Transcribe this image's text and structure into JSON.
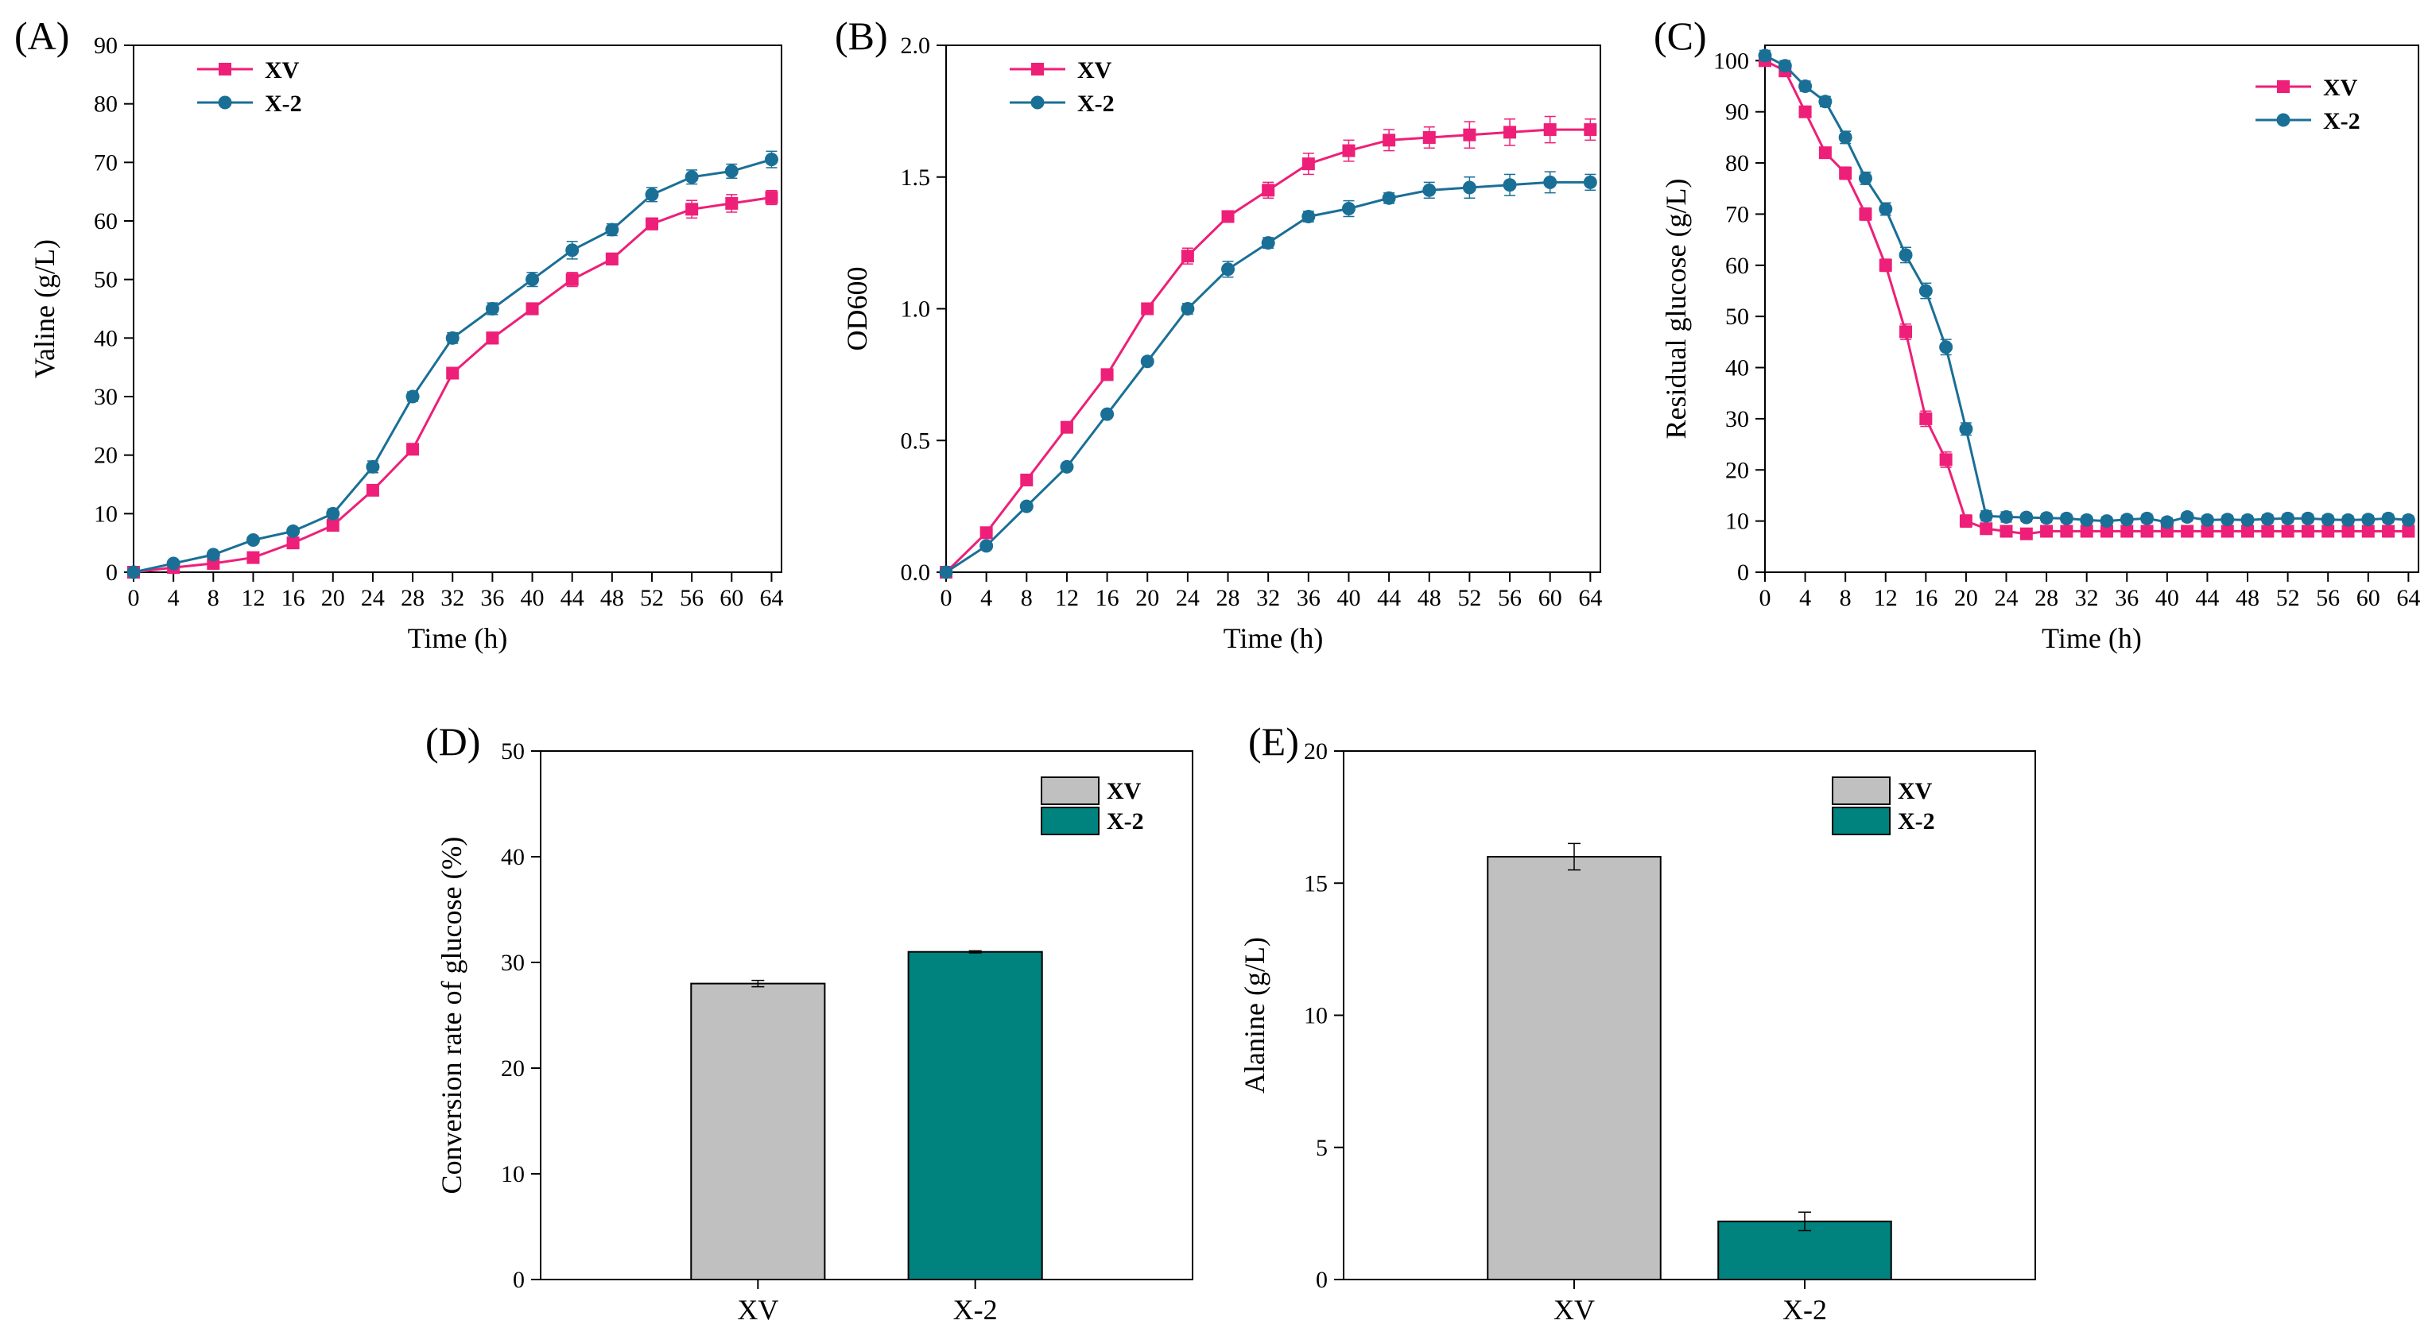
{
  "colors": {
    "xv": "#ee1f78",
    "x2": "#1a6f96",
    "bar_xv": "#c0c0c0",
    "bar_x2": "#00827f",
    "axis": "#000000"
  },
  "chart_data": [
    {
      "id": "A",
      "panel_label": "(A)",
      "type": "line",
      "xlabel": "Time (h)",
      "ylabel": "Valine (g/L)",
      "xlim": [
        0,
        65
      ],
      "ylim": [
        0,
        90
      ],
      "xticks": [
        0,
        4,
        8,
        12,
        16,
        20,
        24,
        28,
        32,
        36,
        40,
        44,
        48,
        52,
        56,
        60,
        64
      ],
      "yticks": [
        0,
        10,
        20,
        30,
        40,
        50,
        60,
        70,
        80,
        90
      ],
      "legend": "top-left",
      "series": [
        {
          "name": "XV",
          "color": "#ee1f78",
          "marker": "square",
          "x": [
            0,
            4,
            8,
            12,
            16,
            20,
            24,
            28,
            32,
            36,
            40,
            44,
            48,
            52,
            56,
            60,
            64
          ],
          "y": [
            0,
            0.8,
            1.5,
            2.5,
            5,
            8,
            14,
            21,
            34,
            40,
            45,
            50,
            53.5,
            59.5,
            62,
            63,
            64
          ],
          "err": [
            0,
            0.4,
            0.4,
            0.4,
            0.5,
            0.6,
            0.8,
            0.8,
            0.9,
            1,
            1,
            1.2,
            1,
            1,
            1.5,
            1.5,
            1.2
          ]
        },
        {
          "name": "X-2",
          "color": "#1a6f96",
          "marker": "circle",
          "x": [
            0,
            4,
            8,
            12,
            16,
            20,
            24,
            28,
            32,
            36,
            40,
            44,
            48,
            52,
            56,
            60,
            64
          ],
          "y": [
            0,
            1.5,
            3,
            5.5,
            7,
            10,
            18,
            30,
            40,
            45,
            50,
            55,
            58.5,
            64.5,
            67.5,
            68.5,
            70.5
          ],
          "err": [
            0,
            0.4,
            0.4,
            0.5,
            0.6,
            0.8,
            1,
            0.8,
            0.9,
            1,
            1.2,
            1.5,
            1,
            1.2,
            1.2,
            1.2,
            1.4
          ]
        }
      ]
    },
    {
      "id": "B",
      "panel_label": "(B)",
      "type": "line",
      "xlabel": "Time (h)",
      "ylabel": "OD600",
      "xlim": [
        0,
        65
      ],
      "ylim": [
        0,
        2.0
      ],
      "xticks": [
        0,
        4,
        8,
        12,
        16,
        20,
        24,
        28,
        32,
        36,
        40,
        44,
        48,
        52,
        56,
        60,
        64
      ],
      "yticks": [
        0.0,
        0.5,
        1.0,
        1.5,
        2.0
      ],
      "ytick_labels": [
        "0.0",
        "0.5",
        "1.0",
        "1.5",
        "2.0"
      ],
      "legend": "top-left",
      "series": [
        {
          "name": "XV",
          "color": "#ee1f78",
          "marker": "square",
          "x": [
            0,
            4,
            8,
            12,
            16,
            20,
            24,
            28,
            32,
            36,
            40,
            44,
            48,
            52,
            56,
            60,
            64
          ],
          "y": [
            0,
            0.15,
            0.35,
            0.55,
            0.75,
            1.0,
            1.2,
            1.35,
            1.45,
            1.55,
            1.6,
            1.64,
            1.65,
            1.66,
            1.67,
            1.68,
            1.68
          ],
          "err": [
            0,
            0.01,
            0.01,
            0.01,
            0.01,
            0.02,
            0.03,
            0.02,
            0.03,
            0.04,
            0.04,
            0.04,
            0.04,
            0.05,
            0.05,
            0.05,
            0.04
          ]
        },
        {
          "name": "X-2",
          "color": "#1a6f96",
          "marker": "circle",
          "x": [
            0,
            4,
            8,
            12,
            16,
            20,
            24,
            28,
            32,
            36,
            40,
            44,
            48,
            52,
            56,
            60,
            64
          ],
          "y": [
            0,
            0.1,
            0.25,
            0.4,
            0.6,
            0.8,
            1.0,
            1.15,
            1.25,
            1.35,
            1.38,
            1.42,
            1.45,
            1.46,
            1.47,
            1.48,
            1.48
          ],
          "err": [
            0,
            0.01,
            0.01,
            0.01,
            0.01,
            0.01,
            0.02,
            0.03,
            0.02,
            0.02,
            0.03,
            0.02,
            0.03,
            0.04,
            0.04,
            0.04,
            0.03
          ]
        }
      ]
    },
    {
      "id": "C",
      "panel_label": "(C)",
      "type": "line",
      "xlabel": "Time (h)",
      "ylabel": "Residual glucose (g/L)",
      "xlim": [
        0,
        65
      ],
      "ylim": [
        0,
        103
      ],
      "xticks": [
        0,
        4,
        8,
        12,
        16,
        20,
        24,
        28,
        32,
        36,
        40,
        44,
        48,
        52,
        56,
        60,
        64
      ],
      "yticks": [
        0,
        10,
        20,
        30,
        40,
        50,
        60,
        70,
        80,
        90,
        100
      ],
      "legend": "top-right",
      "series": [
        {
          "name": "XV",
          "color": "#ee1f78",
          "marker": "square",
          "x": [
            0,
            2,
            4,
            6,
            8,
            10,
            12,
            14,
            16,
            18,
            20,
            22,
            24,
            26,
            28,
            30,
            32,
            34,
            36,
            38,
            40,
            42,
            44,
            46,
            48,
            50,
            52,
            54,
            56,
            58,
            60,
            62,
            64
          ],
          "y": [
            100,
            98,
            90,
            82,
            78,
            70,
            60,
            47,
            30,
            22,
            10,
            8.5,
            8,
            7.5,
            8,
            8,
            8,
            8,
            8,
            8,
            8,
            8,
            8,
            8,
            8,
            8,
            8,
            8,
            8,
            8,
            8,
            8,
            8
          ],
          "err": [
            1,
            1,
            1,
            1,
            1.2,
            1.2,
            1.2,
            1.5,
            1.5,
            1.5,
            1.2,
            1,
            1,
            0.8,
            0.8,
            0.8,
            0.8,
            0.8,
            0.8,
            0.8,
            0.8,
            0.8,
            0.8,
            0.8,
            0.8,
            0.8,
            0.8,
            0.8,
            0.8,
            0.8,
            0.8,
            0.8,
            0.8
          ]
        },
        {
          "name": "X-2",
          "color": "#1a6f96",
          "marker": "circle",
          "x": [
            0,
            2,
            4,
            6,
            8,
            10,
            12,
            14,
            16,
            18,
            20,
            22,
            24,
            26,
            28,
            30,
            32,
            34,
            36,
            38,
            40,
            42,
            44,
            46,
            48,
            50,
            52,
            54,
            56,
            58,
            60,
            62,
            64
          ],
          "y": [
            101,
            99,
            95,
            92,
            85,
            77,
            71,
            62,
            55,
            44,
            28,
            11,
            10.8,
            10.7,
            10.6,
            10.5,
            10.2,
            10,
            10.3,
            10.5,
            9.8,
            10.8,
            10.2,
            10.3,
            10.2,
            10.4,
            10.5,
            10.5,
            10.3,
            10.2,
            10.3,
            10.5,
            10.2
          ],
          "err": [
            1,
            1,
            1,
            1,
            1.2,
            1.2,
            1.2,
            1.5,
            1.5,
            1.5,
            1.2,
            1,
            1,
            0.8,
            0.8,
            0.8,
            0.8,
            0.8,
            0.8,
            0.8,
            0.8,
            0.8,
            0.8,
            0.8,
            0.8,
            0.8,
            0.8,
            0.8,
            0.8,
            0.8,
            0.8,
            0.8,
            0.8
          ]
        }
      ]
    },
    {
      "id": "D",
      "panel_label": "(D)",
      "type": "bar",
      "xlabel": "",
      "ylabel": "Conversion rate of glucose (%)",
      "ylim": [
        0,
        50
      ],
      "yticks": [
        0,
        10,
        20,
        30,
        40,
        50
      ],
      "categories": [
        "XV",
        "X-2"
      ],
      "values": [
        28,
        31
      ],
      "err": [
        0.3,
        0.1
      ],
      "colors": [
        "#c0c0c0",
        "#00827f"
      ],
      "legend": "top-right",
      "legend_entries": [
        "XV",
        "X-2"
      ]
    },
    {
      "id": "E",
      "panel_label": "(E)",
      "type": "bar",
      "xlabel": "",
      "ylabel": "Alanine (g/L)",
      "ylim": [
        0,
        20
      ],
      "yticks": [
        0,
        5,
        10,
        15,
        20
      ],
      "categories": [
        "XV",
        "X-2"
      ],
      "values": [
        16,
        2.2
      ],
      "err": [
        0.5,
        0.35
      ],
      "colors": [
        "#c0c0c0",
        "#00827f"
      ],
      "legend": "top-right",
      "legend_entries": [
        "XV",
        "X-2"
      ]
    }
  ]
}
